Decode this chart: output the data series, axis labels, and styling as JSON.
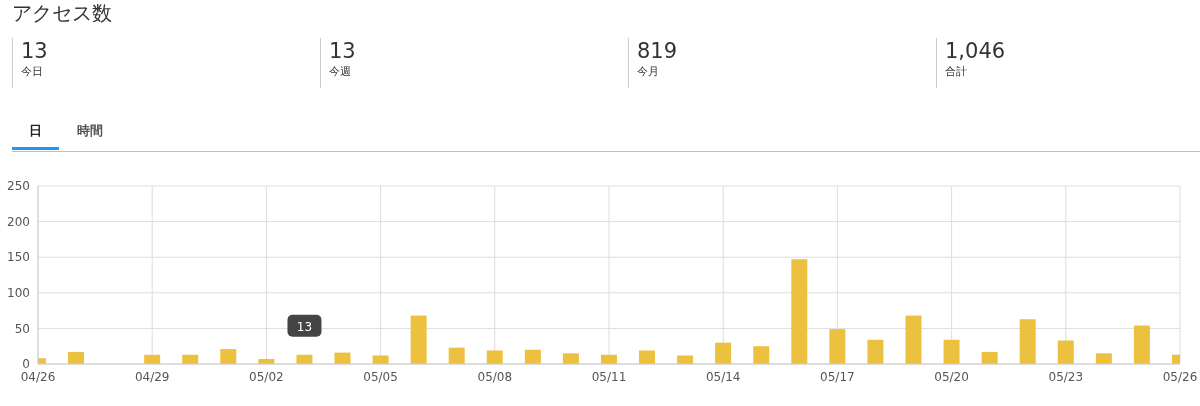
{
  "chart_data": {
    "type": "bar",
    "title": "アクセス数",
    "annotations": [
      "13",
      "今日",
      "13",
      "今週",
      "819",
      "今月",
      "1,046",
      "合計",
      "日",
      "時間",
      {
        "text": "13",
        "x": "--05-03",
        "y": 13
      }
    ],
    "x": [
      "--04-26",
      "--04-27",
      "--04-28",
      "--04-29",
      "--04-30",
      "--05-01",
      "--05-02",
      "--05-03",
      "--05-04",
      "--05-05",
      "--05-06",
      "--05-07",
      "--05-08",
      "--05-09",
      "--05-10",
      "--05-11",
      "--05-12",
      "--05-13",
      "--05-14",
      "--05-15",
      "--05-16",
      "--05-17",
      "--05-18",
      "--05-19",
      "--05-20",
      "--05-21",
      "--05-22",
      "--05-23",
      "--05-24",
      "--05-25",
      "--05-26"
    ],
    "values": [
      8,
      17,
      0,
      13,
      13,
      21,
      7,
      13,
      16,
      12,
      68,
      23,
      19,
      20,
      15,
      13,
      19,
      12,
      30,
      25,
      147,
      49,
      34,
      68,
      34,
      17,
      63,
      33,
      15,
      54,
      13
    ],
    "color": "#ecc13f",
    "xlim": [
      "--04-26",
      "--05-26"
    ],
    "xticks": [
      {
        "value": "--04-26",
        "label": "04/26"
      },
      {
        "value": "--04-29",
        "label": "04/29"
      },
      {
        "value": "--05-02",
        "label": "05/02"
      },
      {
        "value": "--05-05",
        "label": "05/05"
      },
      {
        "value": "--05-08",
        "label": "05/08"
      },
      {
        "value": "--05-11",
        "label": "05/11"
      },
      {
        "value": "--05-14",
        "label": "05/14"
      },
      {
        "value": "--05-17",
        "label": "05/17"
      },
      {
        "value": "--05-20",
        "label": "05/20"
      },
      {
        "value": "--05-23",
        "label": "05/23"
      },
      {
        "value": "--05-26",
        "label": "05/26"
      }
    ],
    "ylim": [
      0,
      250
    ],
    "yticks": [
      0,
      50,
      100,
      150,
      200,
      250
    ],
    "grid": true
  }
}
